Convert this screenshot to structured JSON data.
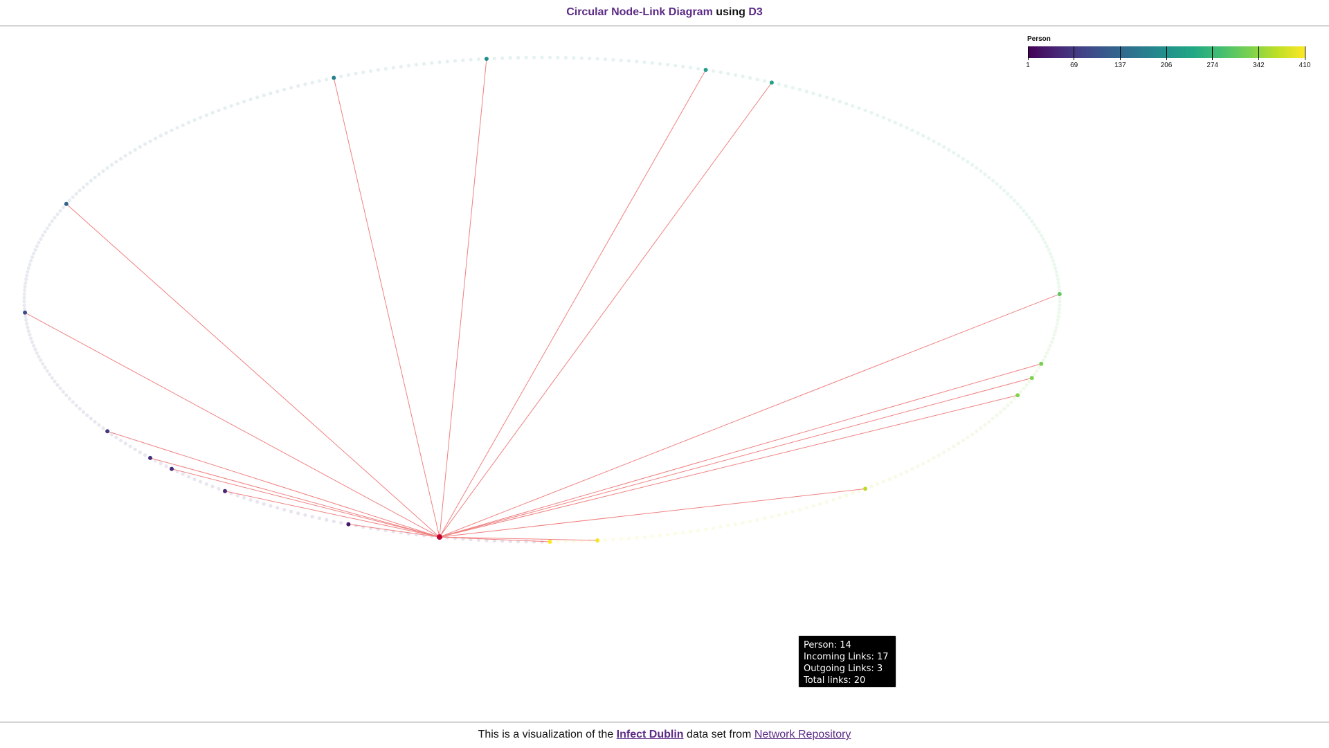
{
  "header": {
    "title_part1": "Circular Node-Link Diagram",
    "title_part2": " using ",
    "title_part3": "D3"
  },
  "legend": {
    "title": "Person",
    "ticks": [
      "1",
      "69",
      "137",
      "206",
      "274",
      "342",
      "410"
    ]
  },
  "tooltip": {
    "person": "Person: 14",
    "incoming": "Incoming Links: 17",
    "outgoing": "Outgoing Links: 3",
    "total": "Total links: 20"
  },
  "footer": {
    "text1": "This is a visualization of the ",
    "link1": "Infect Dublin",
    "text2": " data set from ",
    "link2": "Network Repository"
  },
  "diagram": {
    "total_nodes": 410,
    "selected_person": 14,
    "highlighted_persons": [
      26,
      44,
      53,
      57,
      66,
      100,
      130,
      179,
      199,
      227,
      236,
      307,
      326,
      330,
      335,
      367,
      404,
      410
    ],
    "colors": {
      "link": "#f08080",
      "faded_node": "#dfe6ee",
      "selected_node": "#c0002e"
    }
  }
}
